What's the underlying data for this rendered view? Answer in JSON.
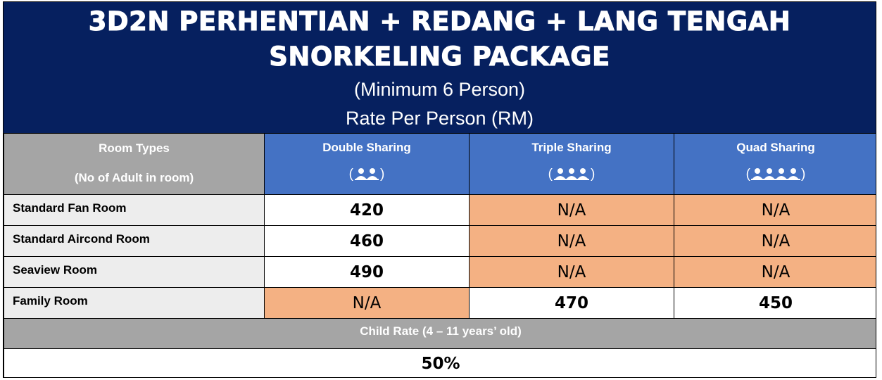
{
  "header": {
    "title_line1": "3D2N PERHENTIAN + REDANG + LANG TENGAH",
    "title_line2": "SNORKELING PACKAGE",
    "subtitle_line1": "(Minimum 6 Person)",
    "subtitle_line2": "Rate Per Person (RM)",
    "background_color": "#06205f"
  },
  "table": {
    "room_types_label": "Room Types",
    "adults_label": "(No of Adult in room)",
    "columns": [
      {
        "label": "Double Sharing",
        "icon": "two-people-icon",
        "persons": 2
      },
      {
        "label": "Triple Sharing",
        "icon": "three-people-icon",
        "persons": 3
      },
      {
        "label": "Quad Sharing",
        "icon": "four-people-icon",
        "persons": 4
      }
    ],
    "rows": [
      {
        "room": "Standard Fan Room",
        "double": "420",
        "triple": "N/A",
        "quad": "N/A"
      },
      {
        "room": "Standard Aircond Room",
        "double": "460",
        "triple": "N/A",
        "quad": "N/A"
      },
      {
        "room": "Seaview Room",
        "double": "490",
        "triple": "N/A",
        "quad": "N/A"
      },
      {
        "room": "Family Room",
        "double": "N/A",
        "triple": "470",
        "quad": "450"
      }
    ],
    "child_rate_label": "Child Rate (4 – 11 years’ old)",
    "child_rate_value": "50%",
    "colors": {
      "column_header": "#4472c4",
      "label_header": "#a5a5a5",
      "room_cell": "#ededed",
      "not_available": "#f4b183"
    }
  }
}
